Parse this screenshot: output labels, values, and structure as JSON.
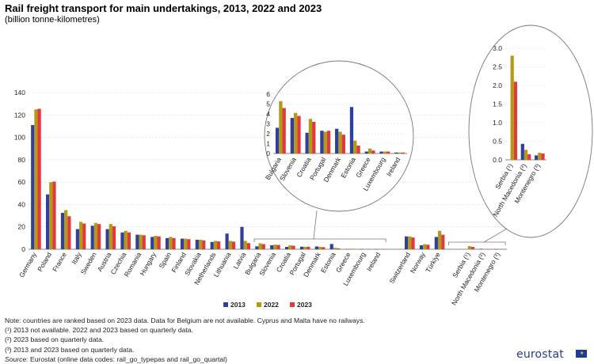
{
  "title": "Rail freight transport for main undertakings, 2013, 2022 and 2023",
  "subtitle": "(billion tonne-kilometres)",
  "colors": {
    "s2013": "#2e3f9e",
    "s2022": "#b39a12",
    "s2023": "#e0393e",
    "axis": "#888888",
    "grid": "#dddddd"
  },
  "chart_data": [
    {
      "type": "bar",
      "ylim": [
        0,
        140
      ],
      "yticks": [
        0,
        20,
        40,
        60,
        80,
        100,
        120,
        140
      ],
      "categories": [
        "Germany",
        "Poland",
        "France",
        "Italy",
        "Sweden",
        "Austria",
        "Czechia",
        "Romania",
        "Hungary",
        "Spain",
        "Finland",
        "Slovakia",
        "Netherlands",
        "Lithuania",
        "Latvia",
        "Bulgaria",
        "Slovenia",
        "Croatia",
        "Portugal",
        "Denmark",
        "Estonia",
        "Greece",
        "Luxembourg",
        "Ireland",
        "Switzerland",
        "Norway",
        "Türkiye",
        "Serbia (¹)",
        "North Macedonia (²)",
        "Montenegro (³)"
      ],
      "series": [
        {
          "name": "2013",
          "values": [
            111,
            49,
            32.5,
            18,
            21,
            18,
            15,
            13,
            11,
            10,
            9.5,
            8.5,
            6.5,
            14,
            20,
            2.6,
            3.6,
            2.1,
            2.3,
            2.5,
            4.7,
            0.2,
            0.2,
            0.1,
            11.5,
            3.5,
            11,
            null,
            0.43,
            0.12
          ]
        },
        {
          "name": "2022",
          "values": [
            125,
            60,
            35,
            24.5,
            23.5,
            22.5,
            16.5,
            13,
            12,
            11,
            9.5,
            8.5,
            7.5,
            7.5,
            7.5,
            5.3,
            4.1,
            3.5,
            2.2,
            2.2,
            1.3,
            0.5,
            0.2,
            0.1,
            11.5,
            4.5,
            16.5,
            2.8,
            0.27,
            0.19
          ]
        },
        {
          "name": "2023",
          "values": [
            125.5,
            60.5,
            29.5,
            23,
            22.5,
            20.5,
            15,
            12.5,
            11.5,
            10,
            9,
            8,
            7,
            6.8,
            5.5,
            4.6,
            3.8,
            3.2,
            2.3,
            1.9,
            0.8,
            0.3,
            0.2,
            0.1,
            10.5,
            4,
            13,
            2.1,
            0.15,
            0.17
          ]
        }
      ]
    },
    {
      "type": "bar",
      "ylim": [
        0,
        6
      ],
      "yticks": [
        0,
        1,
        2,
        3,
        4,
        5,
        6
      ],
      "categories": [
        "Bulgaria",
        "Slovenia",
        "Croatia",
        "Portugal",
        "Denmark",
        "Estonia",
        "Greece",
        "Luxembourg",
        "Ireland"
      ],
      "series": [
        {
          "name": "2013",
          "values": [
            2.6,
            3.6,
            2.1,
            2.3,
            2.5,
            4.7,
            0.2,
            0.2,
            0.1
          ]
        },
        {
          "name": "2022",
          "values": [
            5.3,
            4.1,
            3.5,
            2.2,
            2.2,
            1.3,
            0.5,
            0.2,
            0.1
          ]
        },
        {
          "name": "2023",
          "values": [
            4.6,
            3.8,
            3.2,
            2.3,
            1.9,
            0.8,
            0.3,
            0.2,
            0.1
          ]
        }
      ]
    },
    {
      "type": "bar",
      "ylim": [
        0,
        3
      ],
      "yticks": [
        0,
        0.5,
        1.0,
        1.5,
        2.0,
        2.5,
        3.0
      ],
      "ytick_labels": [
        "0.0",
        "0.5",
        "1.0",
        "1.5",
        "2.0",
        "2.5",
        "3.0"
      ],
      "categories": [
        "Serbia (¹)",
        "North Macedonia (²)",
        "Montenegro (³)"
      ],
      "series": [
        {
          "name": "2013",
          "values": [
            null,
            0.43,
            0.12
          ]
        },
        {
          "name": "2022",
          "values": [
            2.8,
            0.27,
            0.19
          ]
        },
        {
          "name": "2023",
          "values": [
            2.1,
            0.15,
            0.17
          ]
        }
      ]
    }
  ],
  "notes": {
    "line1": "Note: countries are ranked based on 2023 data. Data for Belgium are not available. Cyprus and Malta have no railways.",
    "line2": "(¹) 2013 not available. 2022 and 2023 based on quarterly data.",
    "line3": "(²) 2023 based on quarterly data.",
    "line4": "(³) 2013 and 2023 based on quarterly data.",
    "source_label": "Source:",
    "source_text": " Eurostat (online data codes: rail_go_typepas and rail_go_quartal)"
  },
  "logo": {
    "text": "eurostat",
    "flag_stars": "★"
  }
}
